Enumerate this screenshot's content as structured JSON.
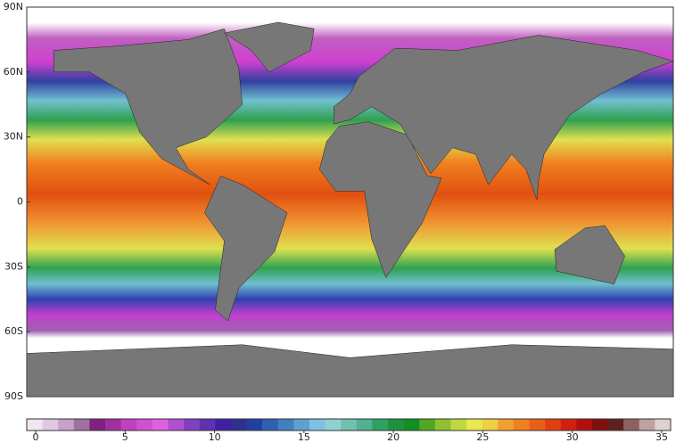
{
  "map": {
    "type": "sea-surface-temperature-map",
    "ylim": [
      -90,
      90
    ],
    "yticks": [
      {
        "value": 90,
        "label": "90N"
      },
      {
        "value": 60,
        "label": "60N"
      },
      {
        "value": 30,
        "label": "30N"
      },
      0,
      {
        "value": -30,
        "label": "30S"
      },
      {
        "value": -60,
        "label": "60S"
      },
      {
        "value": -90,
        "label": "90S"
      }
    ],
    "land_color": "#777777"
  },
  "colorbar": {
    "xlim": [
      -0.5,
      35.5
    ],
    "xticks": [
      0,
      5,
      10,
      15,
      20,
      25,
      30,
      35
    ],
    "colors": [
      "#f0e6f0",
      "#e0c8e0",
      "#c8a0c8",
      "#a070a0",
      "#802080",
      "#a030a0",
      "#c040c0",
      "#d050d0",
      "#e060e0",
      "#b050d0",
      "#8040c0",
      "#6030b0",
      "#4020a0",
      "#303090",
      "#2040a0",
      "#3060b0",
      "#4080c0",
      "#60a0d0",
      "#80c0e0",
      "#90d0d0",
      "#70c0b0",
      "#50b090",
      "#30a060",
      "#209040",
      "#109020",
      "#50a820",
      "#90c030",
      "#c0d840",
      "#e8e850",
      "#f0d040",
      "#f0a030",
      "#f08020",
      "#e86018",
      "#e04010",
      "#d02010",
      "#b01010",
      "#801010",
      "#602020",
      "#906060",
      "#c0a0a0",
      "#e0d0d0"
    ]
  }
}
